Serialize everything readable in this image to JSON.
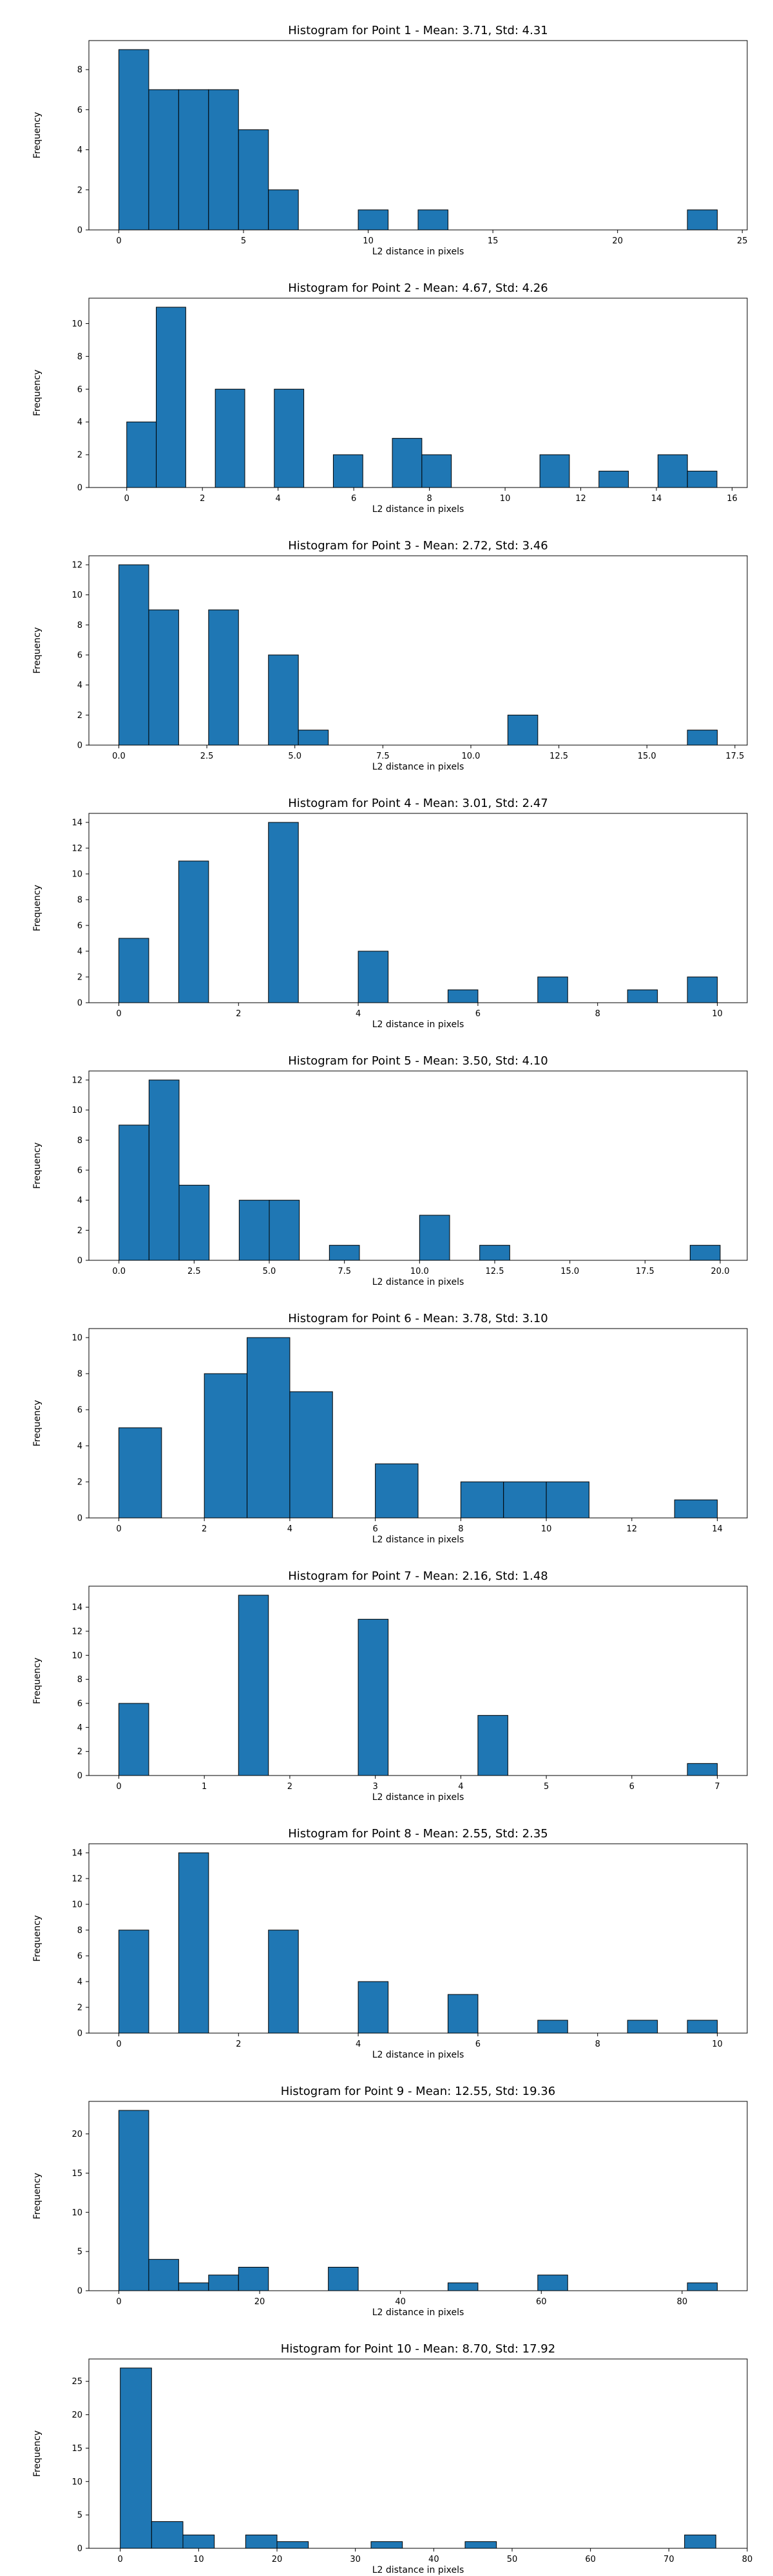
{
  "chart_data": [
    {
      "type": "bar",
      "title": "Histogram for Point 1 - Mean: 3.71, Std: 4.31",
      "xlabel": "L2 distance in pixels",
      "ylabel": "Frequency",
      "xlim": [
        -1.2,
        25.2
      ],
      "ylim": [
        0,
        9.45
      ],
      "xticks": [
        0,
        5,
        10,
        15,
        20,
        25
      ],
      "xtick_labels": [
        "0",
        "5",
        "10",
        "15",
        "20",
        "25"
      ],
      "yticks": [
        0,
        2,
        4,
        6,
        8
      ],
      "ytick_labels": [
        "0",
        "2",
        "4",
        "6",
        "8"
      ],
      "bars": [
        {
          "x0": 0.0,
          "x1": 1.2,
          "count": 9
        },
        {
          "x0": 1.2,
          "x1": 2.4,
          "count": 7
        },
        {
          "x0": 2.4,
          "x1": 3.6,
          "count": 7
        },
        {
          "x0": 3.6,
          "x1": 4.8,
          "count": 7
        },
        {
          "x0": 4.8,
          "x1": 6.0,
          "count": 5
        },
        {
          "x0": 6.0,
          "x1": 7.2,
          "count": 2
        },
        {
          "x0": 9.6,
          "x1": 10.8,
          "count": 1
        },
        {
          "x0": 12.0,
          "x1": 13.2,
          "count": 1
        },
        {
          "x0": 22.8,
          "x1": 24.0,
          "count": 1
        }
      ],
      "grid": false,
      "bar_color": "#1f77b4"
    },
    {
      "type": "bar",
      "title": "Histogram for Point 2 - Mean: 4.67, Std: 4.26",
      "xlabel": "L2 distance in pixels",
      "ylabel": "Frequency",
      "xlim": [
        -1.0,
        16.4
      ],
      "ylim": [
        0,
        11.55
      ],
      "xticks": [
        0,
        2,
        4,
        6,
        8,
        10,
        12,
        14,
        16
      ],
      "xtick_labels": [
        "0",
        "2",
        "4",
        "6",
        "8",
        "10",
        "12",
        "14",
        "16"
      ],
      "yticks": [
        0,
        2,
        4,
        6,
        8,
        10
      ],
      "ytick_labels": [
        "0",
        "2",
        "4",
        "6",
        "8",
        "10"
      ],
      "bars": [
        {
          "x0": 0.0,
          "x1": 0.78,
          "count": 4
        },
        {
          "x0": 0.78,
          "x1": 1.56,
          "count": 11
        },
        {
          "x0": 2.34,
          "x1": 3.12,
          "count": 6
        },
        {
          "x0": 3.9,
          "x1": 4.68,
          "count": 6
        },
        {
          "x0": 5.46,
          "x1": 6.24,
          "count": 2
        },
        {
          "x0": 7.02,
          "x1": 7.8,
          "count": 3
        },
        {
          "x0": 7.8,
          "x1": 8.58,
          "count": 2
        },
        {
          "x0": 10.92,
          "x1": 11.7,
          "count": 2
        },
        {
          "x0": 12.48,
          "x1": 13.26,
          "count": 1
        },
        {
          "x0": 14.04,
          "x1": 14.82,
          "count": 2
        },
        {
          "x0": 14.82,
          "x1": 15.6,
          "count": 1
        }
      ],
      "grid": false,
      "bar_color": "#1f77b4"
    },
    {
      "type": "bar",
      "title": "Histogram for Point 3 - Mean: 2.72, Std: 3.46",
      "xlabel": "L2 distance in pixels",
      "ylabel": "Frequency",
      "xlim": [
        -0.85,
        17.85
      ],
      "ylim": [
        0,
        12.6
      ],
      "xticks": [
        0,
        2.5,
        5,
        7.5,
        10,
        12.5,
        15,
        17.5
      ],
      "xtick_labels": [
        "0.0",
        "2.5",
        "5.0",
        "7.5",
        "10.0",
        "12.5",
        "15.0",
        "17.5"
      ],
      "yticks": [
        0,
        2,
        4,
        6,
        8,
        10,
        12
      ],
      "ytick_labels": [
        "0",
        "2",
        "4",
        "6",
        "8",
        "10",
        "12"
      ],
      "bars": [
        {
          "x0": 0.0,
          "x1": 0.85,
          "count": 12
        },
        {
          "x0": 0.85,
          "x1": 1.7,
          "count": 9
        },
        {
          "x0": 2.55,
          "x1": 3.4,
          "count": 9
        },
        {
          "x0": 4.25,
          "x1": 5.1,
          "count": 6
        },
        {
          "x0": 5.1,
          "x1": 5.95,
          "count": 1
        },
        {
          "x0": 11.05,
          "x1": 11.9,
          "count": 2
        },
        {
          "x0": 16.15,
          "x1": 17.0,
          "count": 1
        }
      ],
      "grid": false,
      "bar_color": "#1f77b4"
    },
    {
      "type": "bar",
      "title": "Histogram for Point 4 - Mean: 3.01, Std: 2.47",
      "xlabel": "L2 distance in pixels",
      "ylabel": "Frequency",
      "xlim": [
        -0.5,
        10.5
      ],
      "ylim": [
        0,
        14.7
      ],
      "xticks": [
        0,
        2,
        4,
        6,
        8,
        10
      ],
      "xtick_labels": [
        "0",
        "2",
        "4",
        "6",
        "8",
        "10"
      ],
      "yticks": [
        0,
        2,
        4,
        6,
        8,
        10,
        12,
        14
      ],
      "ytick_labels": [
        "0",
        "2",
        "4",
        "6",
        "8",
        "10",
        "12",
        "14"
      ],
      "bars": [
        {
          "x0": 0.0,
          "x1": 0.5,
          "count": 5
        },
        {
          "x0": 1.0,
          "x1": 1.5,
          "count": 11
        },
        {
          "x0": 2.5,
          "x1": 3.0,
          "count": 14
        },
        {
          "x0": 4.0,
          "x1": 4.5,
          "count": 4
        },
        {
          "x0": 5.5,
          "x1": 6.0,
          "count": 1
        },
        {
          "x0": 7.0,
          "x1": 7.5,
          "count": 2
        },
        {
          "x0": 8.5,
          "x1": 9.0,
          "count": 1
        },
        {
          "x0": 9.5,
          "x1": 10.0,
          "count": 2
        }
      ],
      "grid": false,
      "bar_color": "#1f77b4"
    },
    {
      "type": "bar",
      "title": "Histogram for Point 5 - Mean: 3.50, Std: 4.10",
      "xlabel": "L2 distance in pixels",
      "ylabel": "Frequency",
      "xlim": [
        -1.0,
        20.9
      ],
      "ylim": [
        0,
        12.6
      ],
      "xticks": [
        0,
        2.5,
        5,
        7.5,
        10,
        12.5,
        15,
        17.5,
        20
      ],
      "xtick_labels": [
        "0.0",
        "2.5",
        "5.0",
        "7.5",
        "10.0",
        "12.5",
        "15.0",
        "17.5",
        "20.0"
      ],
      "yticks": [
        0,
        2,
        4,
        6,
        8,
        10,
        12
      ],
      "ytick_labels": [
        "0",
        "2",
        "4",
        "6",
        "8",
        "10",
        "12"
      ],
      "bars": [
        {
          "x0": 0.0,
          "x1": 1.0,
          "count": 9
        },
        {
          "x0": 1.0,
          "x1": 2.0,
          "count": 12
        },
        {
          "x0": 2.0,
          "x1": 3.0,
          "count": 5
        },
        {
          "x0": 4.0,
          "x1": 5.0,
          "count": 4
        },
        {
          "x0": 5.0,
          "x1": 6.0,
          "count": 4
        },
        {
          "x0": 7.0,
          "x1": 8.0,
          "count": 1
        },
        {
          "x0": 10.0,
          "x1": 11.0,
          "count": 3
        },
        {
          "x0": 12.0,
          "x1": 13.0,
          "count": 1
        },
        {
          "x0": 19.0,
          "x1": 20.0,
          "count": 1
        }
      ],
      "grid": false,
      "bar_color": "#1f77b4"
    },
    {
      "type": "bar",
      "title": "Histogram for Point 6 - Mean: 3.78, Std: 3.10",
      "xlabel": "L2 distance in pixels",
      "ylabel": "Frequency",
      "xlim": [
        -0.7,
        14.7
      ],
      "ylim": [
        0,
        10.5
      ],
      "xticks": [
        0,
        2,
        4,
        6,
        8,
        10,
        12,
        14
      ],
      "xtick_labels": [
        "0",
        "2",
        "4",
        "6",
        "8",
        "10",
        "12",
        "14"
      ],
      "yticks": [
        0,
        2,
        4,
        6,
        8,
        10
      ],
      "ytick_labels": [
        "0",
        "2",
        "4",
        "6",
        "8",
        "10"
      ],
      "bars": [
        {
          "x0": 0.0,
          "x1": 1.0,
          "count": 5
        },
        {
          "x0": 2.0,
          "x1": 3.0,
          "count": 8
        },
        {
          "x0": 3.0,
          "x1": 4.0,
          "count": 10
        },
        {
          "x0": 4.0,
          "x1": 5.0,
          "count": 7
        },
        {
          "x0": 6.0,
          "x1": 7.0,
          "count": 3
        },
        {
          "x0": 8.0,
          "x1": 9.0,
          "count": 2
        },
        {
          "x0": 9.0,
          "x1": 10.0,
          "count": 2
        },
        {
          "x0": 10.0,
          "x1": 11.0,
          "count": 2
        },
        {
          "x0": 13.0,
          "x1": 14.0,
          "count": 1
        }
      ],
      "grid": false,
      "bar_color": "#1f77b4"
    },
    {
      "type": "bar",
      "title": "Histogram for Point 7 - Mean: 2.16, Std: 1.48",
      "xlabel": "L2 distance in pixels",
      "ylabel": "Frequency",
      "xlim": [
        -0.35,
        7.35
      ],
      "ylim": [
        0,
        15.75
      ],
      "xticks": [
        0,
        1,
        2,
        3,
        4,
        5,
        6,
        7
      ],
      "xtick_labels": [
        "0",
        "1",
        "2",
        "3",
        "4",
        "5",
        "6",
        "7"
      ],
      "yticks": [
        0,
        2,
        4,
        6,
        8,
        10,
        12,
        14
      ],
      "ytick_labels": [
        "0",
        "2",
        "4",
        "6",
        "8",
        "10",
        "12",
        "14"
      ],
      "bars": [
        {
          "x0": 0.0,
          "x1": 0.35,
          "count": 6
        },
        {
          "x0": 1.4,
          "x1": 1.75,
          "count": 15
        },
        {
          "x0": 2.8,
          "x1": 3.15,
          "count": 13
        },
        {
          "x0": 4.2,
          "x1": 4.55,
          "count": 5
        },
        {
          "x0": 6.65,
          "x1": 7.0,
          "count": 1
        }
      ],
      "grid": false,
      "bar_color": "#1f77b4"
    },
    {
      "type": "bar",
      "title": "Histogram for Point 8 - Mean: 2.55, Std: 2.35",
      "xlabel": "L2 distance in pixels",
      "ylabel": "Frequency",
      "xlim": [
        -0.5,
        10.5
      ],
      "ylim": [
        0,
        14.7
      ],
      "xticks": [
        0,
        2,
        4,
        6,
        8,
        10
      ],
      "xtick_labels": [
        "0",
        "2",
        "4",
        "6",
        "8",
        "10"
      ],
      "yticks": [
        0,
        2,
        4,
        6,
        8,
        10,
        12,
        14
      ],
      "ytick_labels": [
        "0",
        "2",
        "4",
        "6",
        "8",
        "10",
        "12",
        "14"
      ],
      "bars": [
        {
          "x0": 0.0,
          "x1": 0.5,
          "count": 8
        },
        {
          "x0": 1.0,
          "x1": 1.5,
          "count": 14
        },
        {
          "x0": 2.5,
          "x1": 3.0,
          "count": 8
        },
        {
          "x0": 4.0,
          "x1": 4.5,
          "count": 4
        },
        {
          "x0": 5.5,
          "x1": 6.0,
          "count": 3
        },
        {
          "x0": 7.0,
          "x1": 7.5,
          "count": 1
        },
        {
          "x0": 8.5,
          "x1": 9.0,
          "count": 1
        },
        {
          "x0": 9.5,
          "x1": 10.0,
          "count": 1
        }
      ],
      "grid": false,
      "bar_color": "#1f77b4"
    },
    {
      "type": "bar",
      "title": "Histogram for Point 9 - Mean: 12.55, Std: 19.36",
      "xlabel": "L2 distance in pixels",
      "ylabel": "Frequency",
      "xlim": [
        -4.25,
        89.25
      ],
      "ylim": [
        0,
        24.15
      ],
      "xticks": [
        0,
        20,
        40,
        60,
        80
      ],
      "xtick_labels": [
        "0",
        "20",
        "40",
        "60",
        "80"
      ],
      "yticks": [
        0,
        5,
        10,
        15,
        20
      ],
      "ytick_labels": [
        "0",
        "5",
        "10",
        "15",
        "20"
      ],
      "bars": [
        {
          "x0": 0.0,
          "x1": 4.25,
          "count": 23
        },
        {
          "x0": 4.25,
          "x1": 8.5,
          "count": 4
        },
        {
          "x0": 8.5,
          "x1": 12.75,
          "count": 1
        },
        {
          "x0": 12.75,
          "x1": 17.0,
          "count": 2
        },
        {
          "x0": 17.0,
          "x1": 21.25,
          "count": 3
        },
        {
          "x0": 29.75,
          "x1": 34.0,
          "count": 3
        },
        {
          "x0": 46.75,
          "x1": 51.0,
          "count": 1
        },
        {
          "x0": 59.5,
          "x1": 63.75,
          "count": 2
        },
        {
          "x0": 80.75,
          "x1": 85.0,
          "count": 1
        }
      ],
      "grid": false,
      "bar_color": "#1f77b4"
    },
    {
      "type": "bar",
      "title": "Histogram for Point 10 - Mean: 8.70, Std: 17.92",
      "xlabel": "L2 distance in pixels",
      "ylabel": "Frequency",
      "xlim": [
        -4.0,
        80.0
      ],
      "ylim": [
        0,
        28.35
      ],
      "xticks": [
        0,
        10,
        20,
        30,
        40,
        50,
        60,
        70,
        80
      ],
      "xtick_labels": [
        "0",
        "10",
        "20",
        "30",
        "40",
        "50",
        "60",
        "70",
        "80"
      ],
      "yticks": [
        0,
        5,
        10,
        15,
        20,
        25
      ],
      "ytick_labels": [
        "0",
        "5",
        "10",
        "15",
        "20",
        "25"
      ],
      "bars": [
        {
          "x0": 0.0,
          "x1": 4.0,
          "count": 27
        },
        {
          "x0": 4.0,
          "x1": 8.0,
          "count": 4
        },
        {
          "x0": 8.0,
          "x1": 12.0,
          "count": 2
        },
        {
          "x0": 16.0,
          "x1": 20.0,
          "count": 2
        },
        {
          "x0": 20.0,
          "x1": 24.0,
          "count": 1
        },
        {
          "x0": 32.0,
          "x1": 36.0,
          "count": 1
        },
        {
          "x0": 44.0,
          "x1": 48.0,
          "count": 1
        },
        {
          "x0": 72.0,
          "x1": 76.0,
          "count": 2
        }
      ],
      "grid": false,
      "bar_color": "#1f77b4"
    }
  ]
}
